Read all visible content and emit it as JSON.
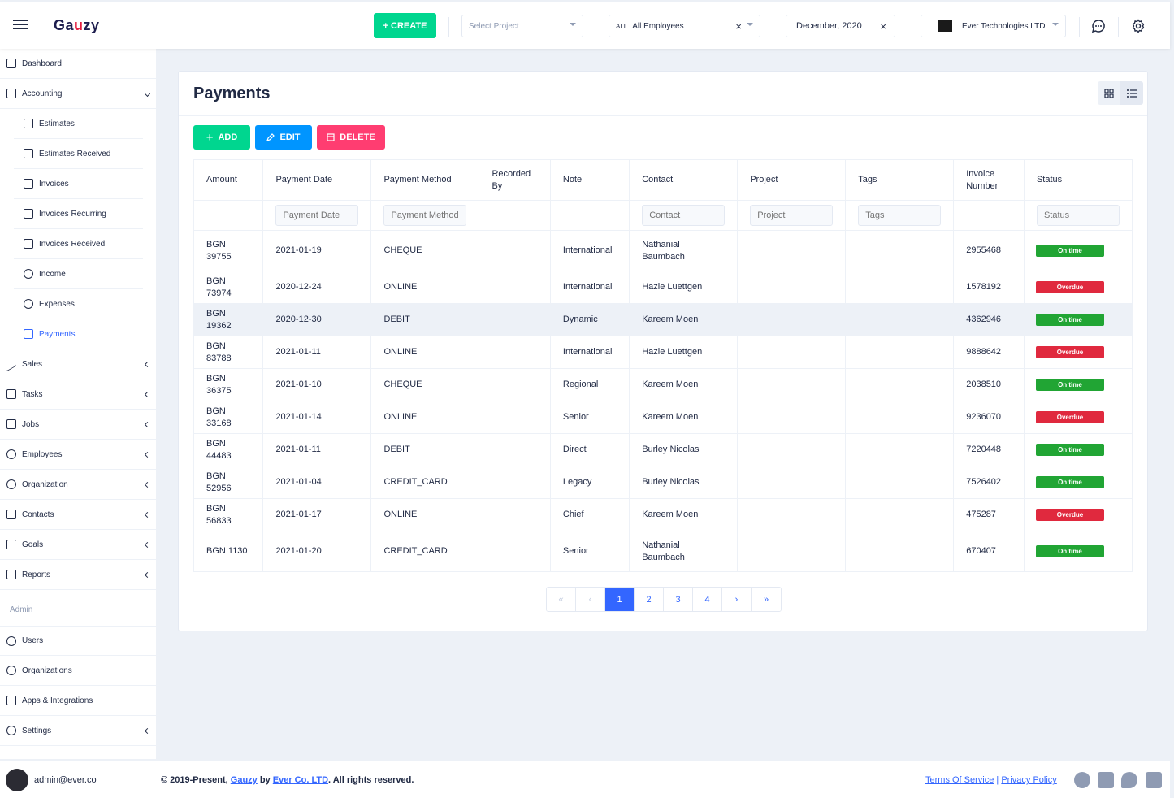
{
  "header": {
    "logo": {
      "pre": "Ga",
      "mark": "u",
      "post": "zy"
    },
    "create_label": "+ CREATE",
    "project_placeholder": "Select Project",
    "employees_prefix": "ALL",
    "employees_label": "All Employees",
    "clear_mark": "×",
    "date_label": "December, 2020",
    "org_label": "Ever Technologies LTD"
  },
  "sidebar": {
    "items": [
      {
        "label": "Dashboard"
      },
      {
        "label": "Accounting"
      },
      {
        "label": "Estimates"
      },
      {
        "label": "Estimates Received"
      },
      {
        "label": "Invoices"
      },
      {
        "label": "Invoices Recurring"
      },
      {
        "label": "Invoices Received"
      },
      {
        "label": "Income"
      },
      {
        "label": "Expenses"
      },
      {
        "label": "Payments"
      },
      {
        "label": "Sales"
      },
      {
        "label": "Tasks"
      },
      {
        "label": "Jobs"
      },
      {
        "label": "Employees"
      },
      {
        "label": "Organization"
      },
      {
        "label": "Contacts"
      },
      {
        "label": "Goals"
      },
      {
        "label": "Reports"
      },
      {
        "label": "Users"
      },
      {
        "label": "Organizations"
      },
      {
        "label": "Apps & Integrations"
      },
      {
        "label": "Settings"
      }
    ],
    "admin_label": "Admin"
  },
  "page": {
    "title": "Payments",
    "add_label": "ADD",
    "edit_label": "EDIT",
    "delete_label": "DELETE"
  },
  "table": {
    "headers": [
      "Amount",
      "Payment Date",
      "Payment Method",
      "Recorded By",
      "Note",
      "Contact",
      "Project",
      "Tags",
      "Invoice Number",
      "Status"
    ],
    "filters": {
      "payment_date": "Payment Date",
      "payment_method": "Payment Method",
      "contact": "Contact",
      "project": "Project",
      "tags": "Tags",
      "status": "Status"
    },
    "rows": [
      {
        "amount": "BGN 39755",
        "date": "2021-01-19",
        "method": "CHEQUE",
        "recorded_by": "",
        "note": "International",
        "contact": "Nathanial Baumbach",
        "project": "",
        "tags": "",
        "invoice": "2955468",
        "status": "On time"
      },
      {
        "amount": "BGN 73974",
        "date": "2020-12-24",
        "method": "ONLINE",
        "recorded_by": "",
        "note": "International",
        "contact": "Hazle Luettgen",
        "project": "",
        "tags": "",
        "invoice": "1578192",
        "status": "Overdue"
      },
      {
        "amount": "BGN 19362",
        "date": "2020-12-30",
        "method": "DEBIT",
        "recorded_by": "",
        "note": "Dynamic",
        "contact": "Kareem Moen",
        "project": "",
        "tags": "",
        "invoice": "4362946",
        "status": "On time"
      },
      {
        "amount": "BGN 83788",
        "date": "2021-01-11",
        "method": "ONLINE",
        "recorded_by": "",
        "note": "International",
        "contact": "Hazle Luettgen",
        "project": "",
        "tags": "",
        "invoice": "9888642",
        "status": "Overdue"
      },
      {
        "amount": "BGN 36375",
        "date": "2021-01-10",
        "method": "CHEQUE",
        "recorded_by": "",
        "note": "Regional",
        "contact": "Kareem Moen",
        "project": "",
        "tags": "",
        "invoice": "2038510",
        "status": "On time"
      },
      {
        "amount": "BGN 33168",
        "date": "2021-01-14",
        "method": "ONLINE",
        "recorded_by": "",
        "note": "Senior",
        "contact": "Kareem Moen",
        "project": "",
        "tags": "",
        "invoice": "9236070",
        "status": "Overdue"
      },
      {
        "amount": "BGN 44483",
        "date": "2021-01-11",
        "method": "DEBIT",
        "recorded_by": "",
        "note": "Direct",
        "contact": "Burley Nicolas",
        "project": "",
        "tags": "",
        "invoice": "7220448",
        "status": "On time"
      },
      {
        "amount": "BGN 52956",
        "date": "2021-01-04",
        "method": "CREDIT_CARD",
        "recorded_by": "",
        "note": "Legacy",
        "contact": "Burley Nicolas",
        "project": "",
        "tags": "",
        "invoice": "7526402",
        "status": "On time"
      },
      {
        "amount": "BGN 56833",
        "date": "2021-01-17",
        "method": "ONLINE",
        "recorded_by": "",
        "note": "Chief",
        "contact": "Kareem Moen",
        "project": "",
        "tags": "",
        "invoice": "475287",
        "status": "Overdue"
      },
      {
        "amount": "BGN 1130",
        "date": "2021-01-20",
        "method": "CREDIT_CARD",
        "recorded_by": "",
        "note": "Senior",
        "contact": "Nathanial Baumbach",
        "project": "",
        "tags": "",
        "invoice": "670407",
        "status": "On time"
      }
    ]
  },
  "pagination": {
    "first": "«",
    "prev": "‹",
    "pages": [
      "1",
      "2",
      "3",
      "4"
    ],
    "next": "›",
    "last": "»",
    "current": "1"
  },
  "footer": {
    "email": "admin@ever.co",
    "copy_prefix": "© 2019-Present,",
    "copy_brand": "Gauzy",
    "copy_by": "by",
    "copy_company": "Ever Co. LTD",
    "copy_suffix": ". All rights reserved.",
    "terms": "Terms Of Service",
    "separator": "|",
    "privacy": "Privacy Policy"
  },
  "colors": {
    "primary": "#3366ff",
    "success": "#00d68f",
    "info": "#0095ff",
    "danger": "#ff3d71",
    "ontime": "#21a534",
    "overdue": "#e0293e"
  },
  "icons": [
    "menu-icon",
    "chat-icon",
    "gear-icon",
    "grid-view-icon",
    "list-view-icon",
    "github-icon",
    "facebook-icon",
    "twitter-icon",
    "linkedin-icon"
  ]
}
